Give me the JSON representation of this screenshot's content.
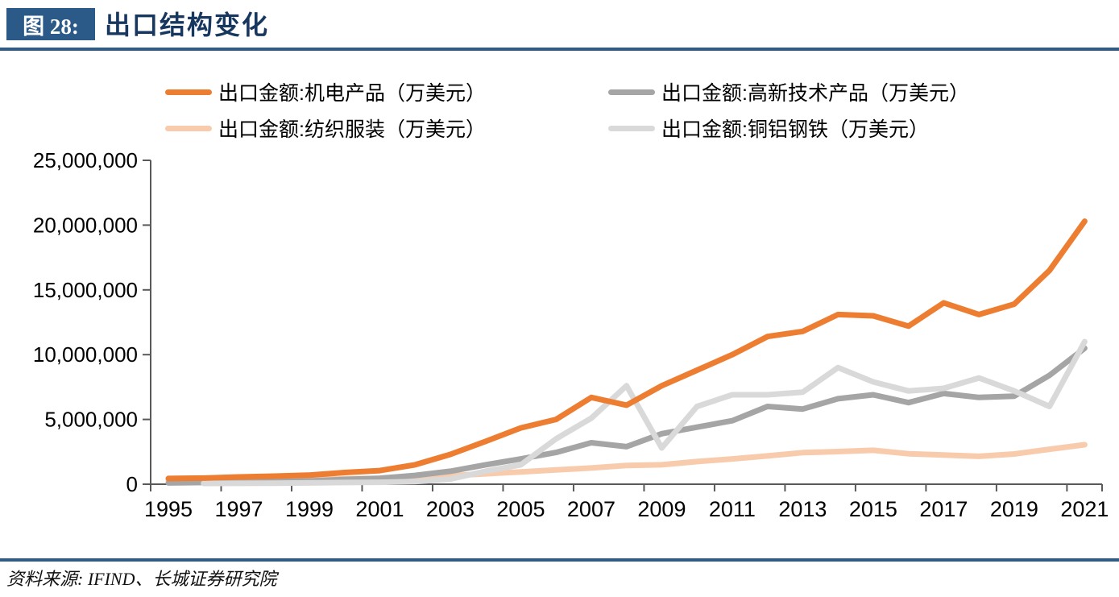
{
  "header": {
    "figure_label": "图 28:",
    "title": "出口结构变化"
  },
  "footer": {
    "source": "资料来源: IFIND、长城证券研究院"
  },
  "colors": {
    "badge_blue": "#2B5A88",
    "rule_blue": "#2E5C8A",
    "title_blue": "#17375E",
    "axis_gray": "#595959",
    "tick_text": "#000000"
  },
  "chart_data": {
    "type": "line",
    "title": "出口结构变化",
    "x": [
      1995,
      1996,
      1997,
      1998,
      1999,
      2000,
      2001,
      2002,
      2003,
      2004,
      2005,
      2006,
      2007,
      2008,
      2009,
      2010,
      2011,
      2012,
      2013,
      2014,
      2015,
      2016,
      2017,
      2018,
      2019,
      2020,
      2021
    ],
    "x_tick_labels": [
      "1995",
      "1997",
      "1999",
      "2001",
      "2003",
      "2005",
      "2007",
      "2009",
      "2011",
      "2013",
      "2015",
      "2017",
      "2019",
      "2021"
    ],
    "y_tick_values": [
      0,
      5000000,
      10000000,
      15000000,
      20000000,
      25000000
    ],
    "y_tick_labels": [
      "0",
      "5,000,000",
      "10,000,000",
      "15,000,000",
      "20,000,000",
      "25,000,000"
    ],
    "ylim": [
      0,
      25000000
    ],
    "grid": false,
    "legend_position": "top",
    "series": [
      {
        "key": "jidian",
        "name": "出口金额:机电产品（万美元）",
        "color": "#ED7D31",
        "values": [
          440000,
          470000,
          560000,
          620000,
          700000,
          900000,
          1050000,
          1500000,
          2300000,
          3300000,
          4350000,
          5000000,
          6700000,
          6100000,
          7600000,
          8800000,
          10000000,
          11400000,
          11800000,
          13100000,
          13000000,
          12200000,
          14000000,
          13100000,
          13900000,
          16500000,
          20300000
        ]
      },
      {
        "key": "gaoxin",
        "name": "出口金额:高新技术产品（万美元）",
        "color": "#A5A5A5",
        "values": [
          100000,
          130000,
          160000,
          200000,
          250000,
          370000,
          460000,
          680000,
          1000000,
          1500000,
          1950000,
          2450000,
          3200000,
          2900000,
          3900000,
          4400000,
          4900000,
          6000000,
          5800000,
          6600000,
          6900000,
          6300000,
          7000000,
          6700000,
          6800000,
          8400000,
          10500000
        ]
      },
      {
        "key": "fangzhi",
        "name": "出口金额:纺织服装（万美元）",
        "color": "#F8CBAD",
        "values": [
          300000,
          300000,
          350000,
          330000,
          350000,
          420000,
          440000,
          520000,
          650000,
          800000,
          950000,
          1100000,
          1250000,
          1450000,
          1500000,
          1750000,
          1950000,
          2180000,
          2440000,
          2520000,
          2620000,
          2350000,
          2250000,
          2150000,
          2330000,
          2700000,
          3050000
        ]
      },
      {
        "key": "tonglvgangtie",
        "name": "出口金额:铜铝钢铁（万美元）",
        "color": "#D9D9D9",
        "values": [
          null,
          60000,
          70000,
          80000,
          100000,
          130000,
          150000,
          200000,
          400000,
          1000000,
          1500000,
          3500000,
          5100000,
          7600000,
          2800000,
          6000000,
          6900000,
          6900000,
          7100000,
          9000000,
          7900000,
          7200000,
          7400000,
          8200000,
          7200000,
          6000000,
          11000000
        ]
      }
    ]
  }
}
